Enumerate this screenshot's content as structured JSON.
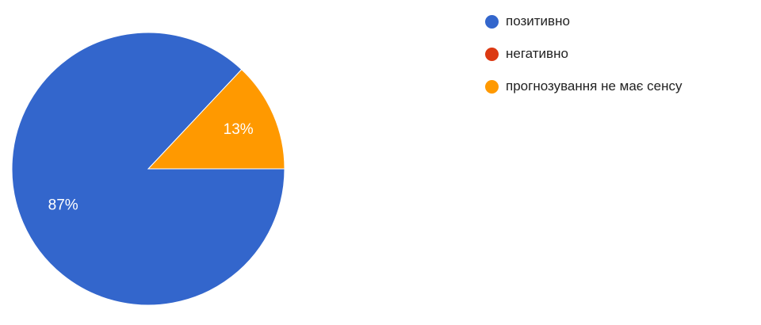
{
  "chart_data": {
    "type": "pie",
    "slices": [
      {
        "label": "позитивно",
        "value": 87,
        "display": "87%",
        "color": "#3366cc"
      },
      {
        "label": "негативно",
        "value": 0,
        "display": "",
        "color": "#dc3912"
      },
      {
        "label": "прогнозування не має сенсу",
        "value": 13,
        "display": "13%",
        "color": "#ff9900"
      }
    ],
    "legend_position": "right"
  }
}
